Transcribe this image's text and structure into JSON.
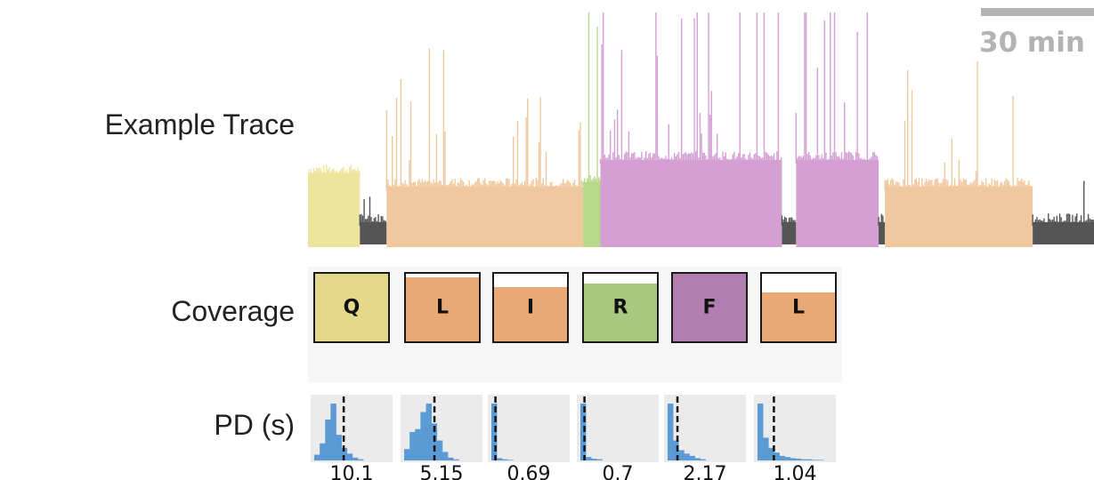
{
  "labels": {
    "example_trace": "Example Trace",
    "coverage": "Coverage",
    "pd": "PD (s)"
  },
  "scale_bar": {
    "label": "30 min"
  },
  "colors": {
    "Q": "#eee59d",
    "L": "#f0c8a0",
    "I": "#f0c8a0",
    "R": "#b7d98b",
    "F": "#d4a0d4",
    "gap": "#555555",
    "coverage_Q": "#e6d88a",
    "coverage_L": "#e8a976",
    "coverage_I": "#e8a976",
    "coverage_R": "#a8c97f",
    "coverage_F": "#b07fb0",
    "histogram": "#5b9bd5",
    "panel_bg": "#ebebeb"
  },
  "trace_segments": [
    {
      "state": "Q",
      "start": 0.0,
      "end": 0.066
    },
    {
      "state": "gap",
      "start": 0.066,
      "end": 0.1
    },
    {
      "state": "L",
      "start": 0.1,
      "end": 0.35
    },
    {
      "state": "R",
      "start": 0.35,
      "end": 0.372
    },
    {
      "state": "F",
      "start": 0.372,
      "end": 0.603
    },
    {
      "state": "gap",
      "start": 0.603,
      "end": 0.621
    },
    {
      "state": "F",
      "start": 0.621,
      "end": 0.726
    },
    {
      "state": "gap",
      "start": 0.726,
      "end": 0.734
    },
    {
      "state": "L",
      "start": 0.734,
      "end": 0.922
    },
    {
      "state": "gap",
      "start": 0.922,
      "end": 1.0
    }
  ],
  "coverage": [
    {
      "letter": "Q",
      "state": "Q",
      "fraction": 1.0
    },
    {
      "letter": "L",
      "state": "L",
      "fraction": 0.95
    },
    {
      "letter": "I",
      "state": "I",
      "fraction": 0.8
    },
    {
      "letter": "R",
      "state": "R",
      "fraction": 0.86
    },
    {
      "letter": "F",
      "state": "F",
      "fraction": 1.0
    },
    {
      "letter": "L",
      "state": "L",
      "fraction": 0.72
    }
  ],
  "pause_durations": [
    {
      "value": "10.1",
      "hist": [
        0.1,
        0.3,
        0.72,
        1.0,
        0.45,
        0.22,
        0.12,
        0.05,
        0.02,
        0,
        0,
        0
      ],
      "median_frac": 0.36
    },
    {
      "value": "5.15",
      "hist": [
        0.2,
        0.5,
        0.55,
        0.85,
        1.0,
        0.65,
        0.35,
        0.15,
        0.05,
        0.02,
        0,
        0
      ],
      "median_frac": 0.37
    },
    {
      "value": "0.69",
      "hist": [
        1.0,
        0.04,
        0.02,
        0.01,
        0,
        0,
        0,
        0,
        0,
        0,
        0,
        0
      ],
      "median_frac": 0.05
    },
    {
      "value": "0.7",
      "hist": [
        1.0,
        0.06,
        0.03,
        0.02,
        0,
        0,
        0,
        0,
        0,
        0,
        0,
        0
      ],
      "median_frac": 0.05
    },
    {
      "value": "2.17",
      "hist": [
        1.0,
        0.35,
        0.18,
        0.12,
        0.08,
        0.04,
        0.02,
        0,
        0,
        0,
        0,
        0
      ],
      "median_frac": 0.12
    },
    {
      "value": "1.04",
      "hist": [
        1.0,
        0.4,
        0.22,
        0.14,
        0.08,
        0.06,
        0.04,
        0.03,
        0.02,
        0.02,
        0.01,
        0.01
      ],
      "median_frac": 0.2
    }
  ]
}
